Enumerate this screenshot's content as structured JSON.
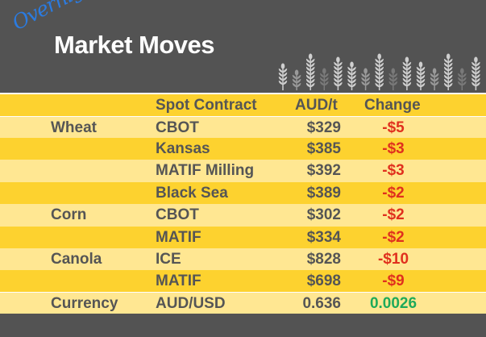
{
  "header": {
    "overnight": "Overnight",
    "title": "Market Moves",
    "decoration": "wheat-stalks-icon"
  },
  "columns": {
    "contract": "Spot Contract",
    "price": "AUD/t",
    "change": "Change"
  },
  "rows": [
    {
      "category": "Wheat",
      "contract": "CBOT",
      "price": "$329",
      "change": "-$5",
      "direction": "down"
    },
    {
      "category": "",
      "contract": "Kansas",
      "price": "$385",
      "change": "-$3",
      "direction": "down"
    },
    {
      "category": "",
      "contract": "MATIF Milling",
      "price": "$392",
      "change": "-$3",
      "direction": "down"
    },
    {
      "category": "",
      "contract": "Black Sea",
      "price": "$389",
      "change": "-$2",
      "direction": "down"
    },
    {
      "category": "Corn",
      "contract": "CBOT",
      "price": "$302",
      "change": "-$2",
      "direction": "down"
    },
    {
      "category": "",
      "contract": "MATIF",
      "price": "$334",
      "change": "-$2",
      "direction": "down"
    },
    {
      "category": "Canola",
      "contract": "ICE",
      "price": "$828",
      "change": "-$10",
      "direction": "down"
    },
    {
      "category": "",
      "contract": "MATIF",
      "price": "$698",
      "change": "-$9",
      "direction": "down"
    }
  ],
  "currency": {
    "category": "Currency",
    "contract": "AUD/USD",
    "price": "0.636",
    "change": "0.0026",
    "direction": "up"
  },
  "colors": {
    "header_bg": "#535353",
    "row_dark": "#FDD22F",
    "row_light": "#FFE792",
    "text": "#555555",
    "negative": "#E0301E",
    "positive": "#1EAA5A",
    "overnight": "#2B7BE0"
  }
}
